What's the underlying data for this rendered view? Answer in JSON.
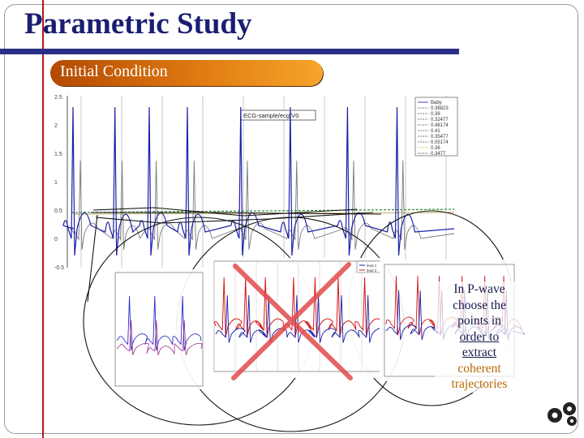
{
  "slide": {
    "title": "Parametric Study",
    "subtitle": "Initial Condition",
    "annotation": {
      "line1": "In P-wave",
      "line2": "choose the",
      "line3": "points in",
      "line4": "order to",
      "line5": "extract",
      "line6": "coherent",
      "line7": "trajectories"
    }
  },
  "colors": {
    "title": "#1a1e72",
    "accent_bar": "#2a2f86",
    "vertical_rule": "#b01818",
    "pill": "#e07a12",
    "cross": "#e24b4b",
    "ecg_blue": "#1b1fa8",
    "ecg_red": "#d41a1a",
    "highlight_text": "#b86a00"
  },
  "icons": [
    "gears-icon",
    "red-x-mark"
  ],
  "chart_data": {
    "type": "line",
    "main_yticks": [
      "2.5",
      "2",
      "1.5",
      "1",
      "0.5",
      "0",
      "-0.5"
    ],
    "main_legend": [
      "Baby",
      "0.36823",
      "0.36",
      "0.32477",
      "0.48174",
      "0.41",
      "0.35477",
      "0.05174",
      "0.36",
      "0.3477"
    ],
    "main_title_box": "ECG-sample/ecg/V0",
    "inner_legend": [
      "lead 1",
      "lead 2"
    ],
    "beats": [
      0.0,
      0.11,
      0.2,
      0.3,
      0.44,
      0.57,
      0.72,
      0.85
    ]
  }
}
